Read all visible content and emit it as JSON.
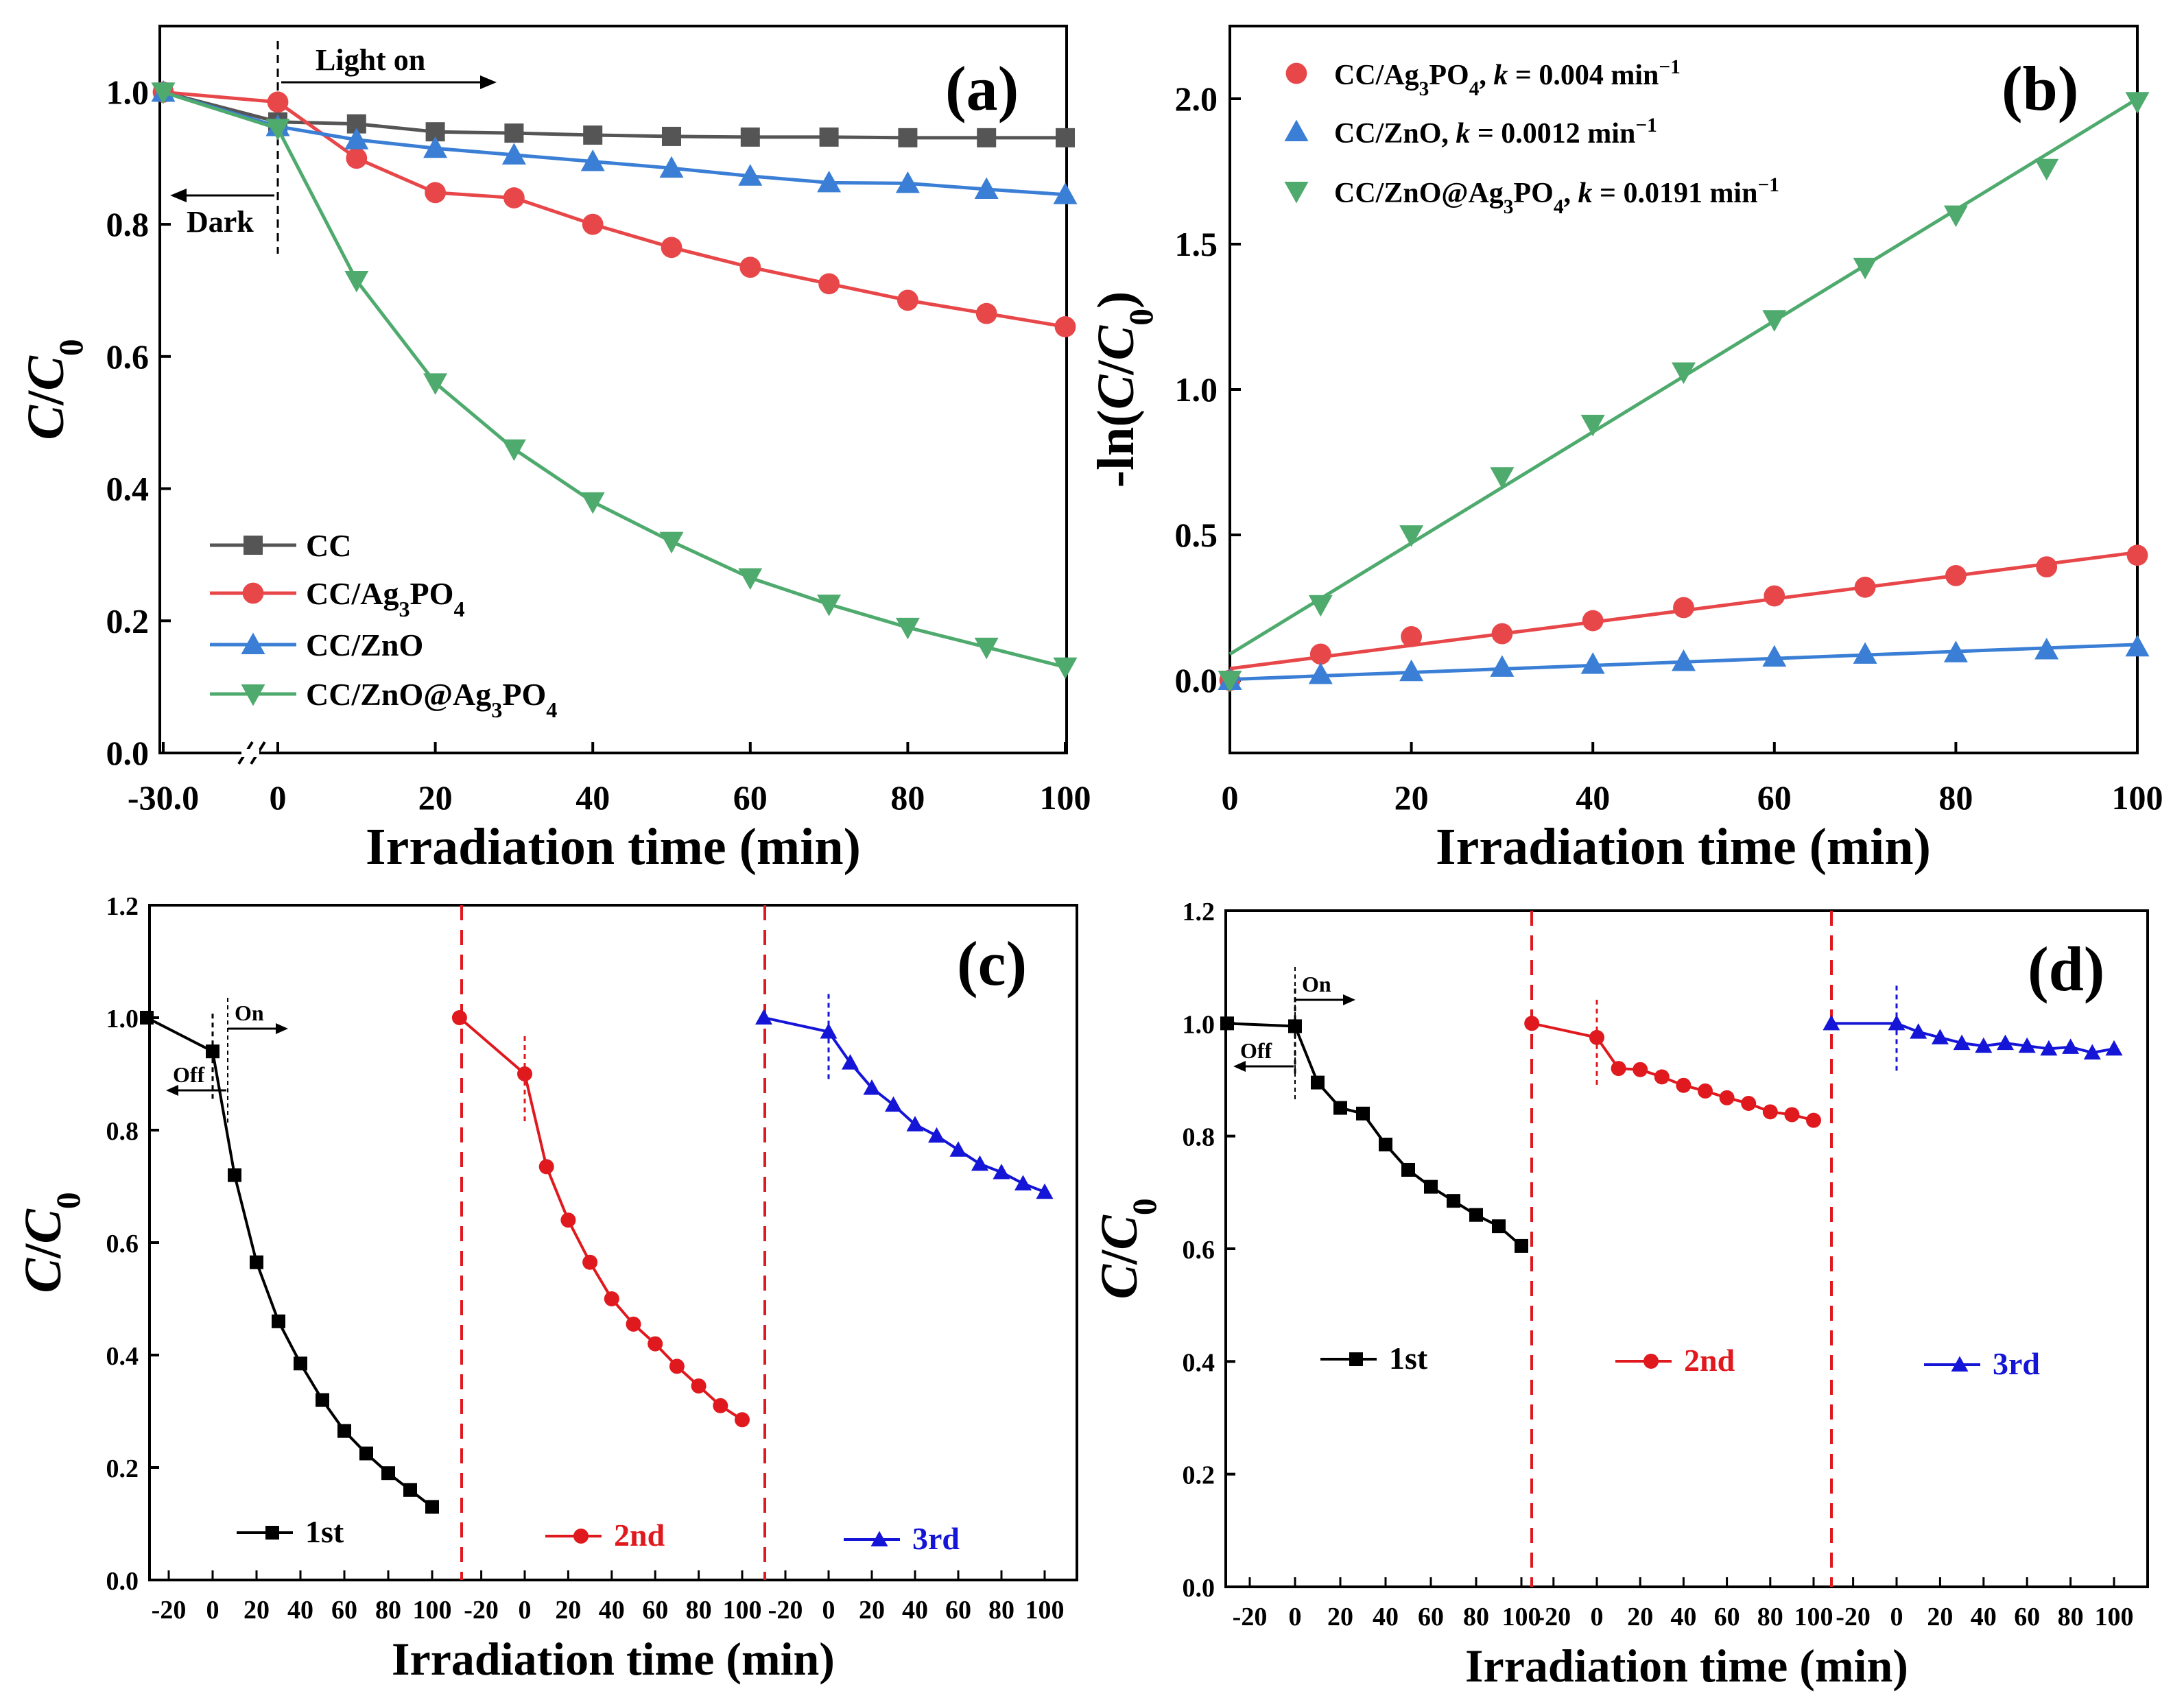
{
  "chart_data": [
    {
      "panel": "(a)",
      "type": "line",
      "xlabel": "Irradiation time (min)",
      "ylabel": "C/C0",
      "xticks": [
        "-30.0",
        "0",
        "20",
        "40",
        "60",
        "80",
        "100"
      ],
      "yticks": [
        "0.0",
        "0.2",
        "0.4",
        "0.6",
        "0.8",
        "1.0"
      ],
      "ylim": [
        0,
        1.1
      ],
      "annotations": {
        "light_on": "Light on",
        "dark": "Dark"
      },
      "series": [
        {
          "name": "CC",
          "label_html": "CC",
          "color": "#555555",
          "marker": "square",
          "x": [
            -30,
            0,
            10,
            20,
            30,
            40,
            50,
            60,
            70,
            80,
            90,
            100
          ],
          "y": [
            1.0,
            0.955,
            0.952,
            0.94,
            0.938,
            0.935,
            0.933,
            0.932,
            0.932,
            0.931,
            0.931,
            0.931
          ]
        },
        {
          "name": "CC/Ag3PO4",
          "label_parts": [
            "CC/Ag",
            "3",
            "PO",
            "4"
          ],
          "color": "#e8474a",
          "marker": "circle",
          "x": [
            -30,
            0,
            10,
            20,
            30,
            40,
            50,
            60,
            70,
            80,
            90,
            100
          ],
          "y": [
            1.0,
            0.985,
            0.9,
            0.848,
            0.84,
            0.8,
            0.765,
            0.735,
            0.71,
            0.685,
            0.665,
            0.645
          ]
        },
        {
          "name": "CC/ZnO",
          "color": "#3a7fd5",
          "marker": "triangle-up",
          "x": [
            -30,
            0,
            10,
            20,
            30,
            40,
            50,
            60,
            70,
            80,
            90,
            100
          ],
          "y": [
            1.0,
            0.948,
            0.928,
            0.915,
            0.905,
            0.895,
            0.885,
            0.873,
            0.863,
            0.862,
            0.853,
            0.845
          ]
        },
        {
          "name": "CC/ZnO@Ag3PO4",
          "label_parts": [
            "CC/ZnO@Ag",
            "3",
            "PO",
            "4"
          ],
          "color": "#4faa6e",
          "marker": "triangle-down",
          "x": [
            -30,
            0,
            10,
            20,
            30,
            40,
            50,
            60,
            70,
            80,
            90,
            100
          ],
          "y": [
            1.0,
            0.945,
            0.715,
            0.56,
            0.46,
            0.38,
            0.32,
            0.265,
            0.225,
            0.19,
            0.16,
            0.13
          ]
        }
      ]
    },
    {
      "panel": "(b)",
      "type": "scatter",
      "xlabel": "Irradiation time (min)",
      "ylabel": "-ln(C/C0)",
      "xticks": [
        "0",
        "20",
        "40",
        "60",
        "80",
        "100"
      ],
      "yticks": [
        "0.0",
        "0.5",
        "1.0",
        "1.5",
        "2.0"
      ],
      "xlim": [
        0,
        100
      ],
      "ylim": [
        -0.25,
        2.25
      ],
      "series": [
        {
          "name": "CC/Ag3PO4",
          "label_parts": [
            "CC/Ag",
            "3",
            "PO",
            "4",
            ", k = 0.004 min",
            "−1"
          ],
          "color": "#e8474a",
          "marker": "circle",
          "x": [
            0,
            10,
            20,
            30,
            40,
            50,
            60,
            70,
            80,
            90,
            100
          ],
          "y": [
            0.0,
            0.09,
            0.15,
            0.16,
            0.205,
            0.25,
            0.29,
            0.32,
            0.36,
            0.39,
            0.43
          ],
          "fit": {
            "slope": 0.004,
            "intercept": 0.04
          }
        },
        {
          "name": "CC/ZnO",
          "label_parts": [
            "CC/ZnO, k = 0.0012 min",
            "−1"
          ],
          "color": "#3a7fd5",
          "marker": "triangle-up",
          "x": [
            0,
            10,
            20,
            30,
            40,
            50,
            60,
            70,
            80,
            90,
            100
          ],
          "y": [
            0.0,
            0.02,
            0.03,
            0.045,
            0.055,
            0.065,
            0.08,
            0.09,
            0.095,
            0.105,
            0.115
          ],
          "fit": {
            "slope": 0.0012,
            "intercept": 0.003
          }
        },
        {
          "name": "CC/ZnO@Ag3PO4",
          "label_parts": [
            "CC/ZnO@Ag",
            "3",
            "PO",
            "4",
            ", k = 0.0191 min",
            "−1"
          ],
          "color": "#4faa6e",
          "marker": "triangle-down",
          "x": [
            0,
            10,
            20,
            30,
            40,
            50,
            60,
            70,
            80,
            90,
            100
          ],
          "y": [
            0.0,
            0.26,
            0.5,
            0.7,
            0.88,
            1.06,
            1.24,
            1.42,
            1.6,
            1.76,
            1.99
          ],
          "fit": {
            "slope": 0.0191,
            "intercept": 0.09
          }
        }
      ]
    },
    {
      "panel": "(c)",
      "type": "line",
      "xlabel": "Irradiation time (min)",
      "ylabel": "C/C0",
      "xticks": [
        "-20",
        "0",
        "20",
        "40",
        "60",
        "80",
        "100"
      ],
      "yticks": [
        "0.0",
        "0.2",
        "0.4",
        "0.6",
        "0.8",
        "1.0",
        "1.2"
      ],
      "ylim": [
        0,
        1.2
      ],
      "annotations": {
        "on": "On",
        "off": "Off"
      },
      "series": [
        {
          "name": "1st",
          "color": "#000000",
          "marker": "square",
          "x": [
            -30,
            0,
            10,
            20,
            30,
            40,
            50,
            60,
            70,
            80,
            90,
            100
          ],
          "y": [
            1.0,
            0.94,
            0.72,
            0.565,
            0.46,
            0.385,
            0.32,
            0.265,
            0.225,
            0.19,
            0.16,
            0.13
          ]
        },
        {
          "name": "2nd",
          "color": "#e0191e",
          "marker": "circle",
          "x": [
            -30,
            0,
            10,
            20,
            30,
            40,
            50,
            60,
            70,
            80,
            90,
            100
          ],
          "y": [
            1.0,
            0.9,
            0.735,
            0.64,
            0.565,
            0.5,
            0.455,
            0.42,
            0.38,
            0.345,
            0.31,
            0.285
          ]
        },
        {
          "name": "3rd",
          "color": "#1515d8",
          "marker": "triangle-up",
          "x": [
            -30,
            0,
            10,
            20,
            30,
            40,
            50,
            60,
            70,
            80,
            90,
            100
          ],
          "y": [
            1.0,
            0.975,
            0.92,
            0.875,
            0.845,
            0.81,
            0.79,
            0.765,
            0.74,
            0.725,
            0.705,
            0.69
          ]
        }
      ]
    },
    {
      "panel": "(d)",
      "type": "line",
      "xlabel": "Irradiation time (min)",
      "ylabel": "C/C0",
      "xticks": [
        "-20",
        "0",
        "20",
        "40",
        "60",
        "80",
        "100"
      ],
      "yticks": [
        "0.0",
        "0.2",
        "0.4",
        "0.6",
        "0.8",
        "1.0",
        "1.2"
      ],
      "ylim": [
        0,
        1.2
      ],
      "annotations": {
        "on": "On",
        "off": "Off"
      },
      "series": [
        {
          "name": "1st",
          "color": "#000000",
          "marker": "square",
          "x": [
            -30,
            0,
            10,
            20,
            30,
            40,
            50,
            60,
            70,
            80,
            90,
            100
          ],
          "y": [
            1.0,
            0.995,
            0.895,
            0.85,
            0.84,
            0.785,
            0.74,
            0.71,
            0.685,
            0.66,
            0.64,
            0.605
          ]
        },
        {
          "name": "2nd",
          "color": "#e0191e",
          "marker": "circle",
          "x": [
            -30,
            0,
            10,
            20,
            30,
            40,
            50,
            60,
            70,
            80,
            90,
            100
          ],
          "y": [
            1.0,
            0.975,
            0.92,
            0.918,
            0.905,
            0.89,
            0.88,
            0.868,
            0.858,
            0.843,
            0.838,
            0.828
          ]
        },
        {
          "name": "3rd",
          "color": "#1515d8",
          "marker": "triangle-up",
          "x": [
            -30,
            0,
            10,
            20,
            30,
            40,
            50,
            60,
            70,
            80,
            90,
            100
          ],
          "y": [
            1.0,
            1.0,
            0.985,
            0.975,
            0.965,
            0.96,
            0.965,
            0.96,
            0.955,
            0.958,
            0.948,
            0.955
          ]
        }
      ]
    }
  ]
}
